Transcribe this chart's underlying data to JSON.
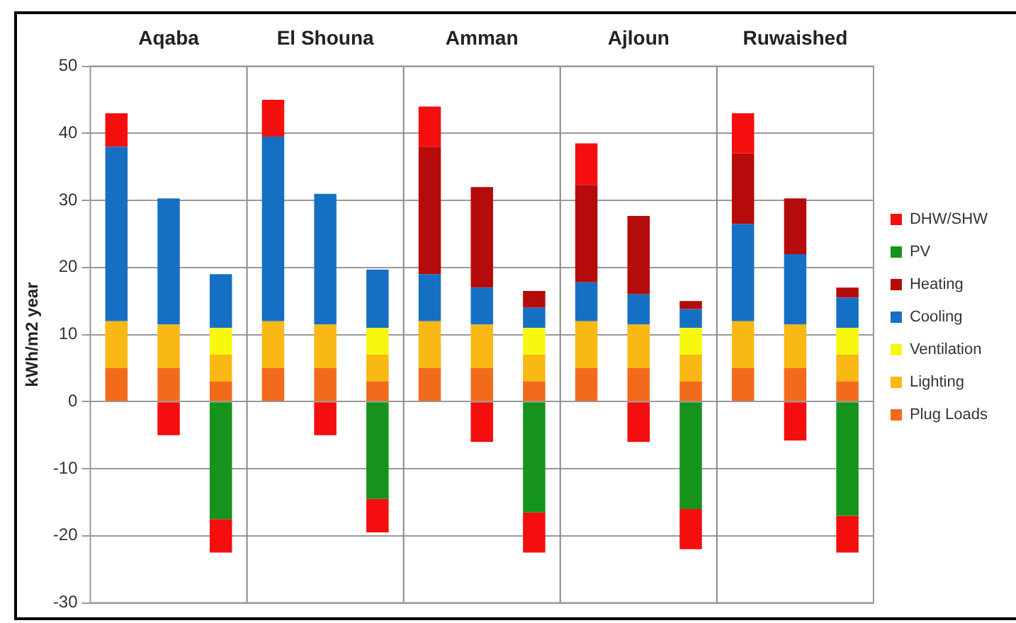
{
  "chart_data": {
    "type": "bar",
    "stacked": true,
    "ylabel": "kWh/m2 year",
    "categories": [
      null,
      "Aqaba",
      null,
      null,
      "El Shouna",
      null,
      null,
      "Amman",
      null,
      null,
      "Ajloun",
      null,
      null,
      "Ruwaished",
      null
    ],
    "series": [
      {
        "name": "Plug Loads",
        "color": "#f26b1d",
        "values": [
          5,
          5,
          3,
          5,
          5,
          3,
          5,
          5,
          3,
          5,
          5,
          3,
          5,
          5,
          3
        ]
      },
      {
        "name": "Lighting",
        "color": "#f9b814",
        "values": [
          7,
          6.5,
          4,
          7,
          6.5,
          4,
          7,
          6.5,
          4,
          7,
          6.5,
          4,
          7,
          6.5,
          4
        ]
      },
      {
        "name": "Ventilation",
        "color": "#f7f70f",
        "values": [
          null,
          null,
          4,
          null,
          null,
          4,
          null,
          null,
          4,
          null,
          null,
          4,
          null,
          null,
          4
        ]
      },
      {
        "name": "Cooling",
        "color": "#1570c4",
        "values": [
          26,
          18.8,
          8,
          27.5,
          19.5,
          8.7,
          7,
          5.5,
          3,
          5.8,
          4.5,
          2.8,
          14.5,
          10.5,
          4.5
        ]
      },
      {
        "name": "Heating",
        "color": "#b50b0b",
        "values": [
          null,
          null,
          null,
          null,
          null,
          null,
          19,
          15,
          2.5,
          14.5,
          11.7,
          1.2,
          10.5,
          8.3,
          1.5
        ]
      },
      {
        "name": "PV",
        "color": "#15931c",
        "values": [
          null,
          null,
          -17.5,
          null,
          null,
          -14.5,
          null,
          null,
          -16.5,
          null,
          null,
          -16,
          null,
          null,
          -17
        ]
      },
      {
        "name": "DHW/SHW",
        "color": "#f40e0e",
        "values": [
          5,
          -5,
          -5,
          5.5,
          -5,
          -5,
          6,
          -6,
          -6,
          6.2,
          -6,
          -6,
          6,
          -5.8,
          -5.5
        ]
      }
    ],
    "ylim": [
      -30,
      50
    ],
    "yticks": [
      -30,
      -20,
      -10,
      0,
      10,
      20,
      30,
      40,
      50
    ],
    "grid": "y",
    "legend": "right"
  }
}
